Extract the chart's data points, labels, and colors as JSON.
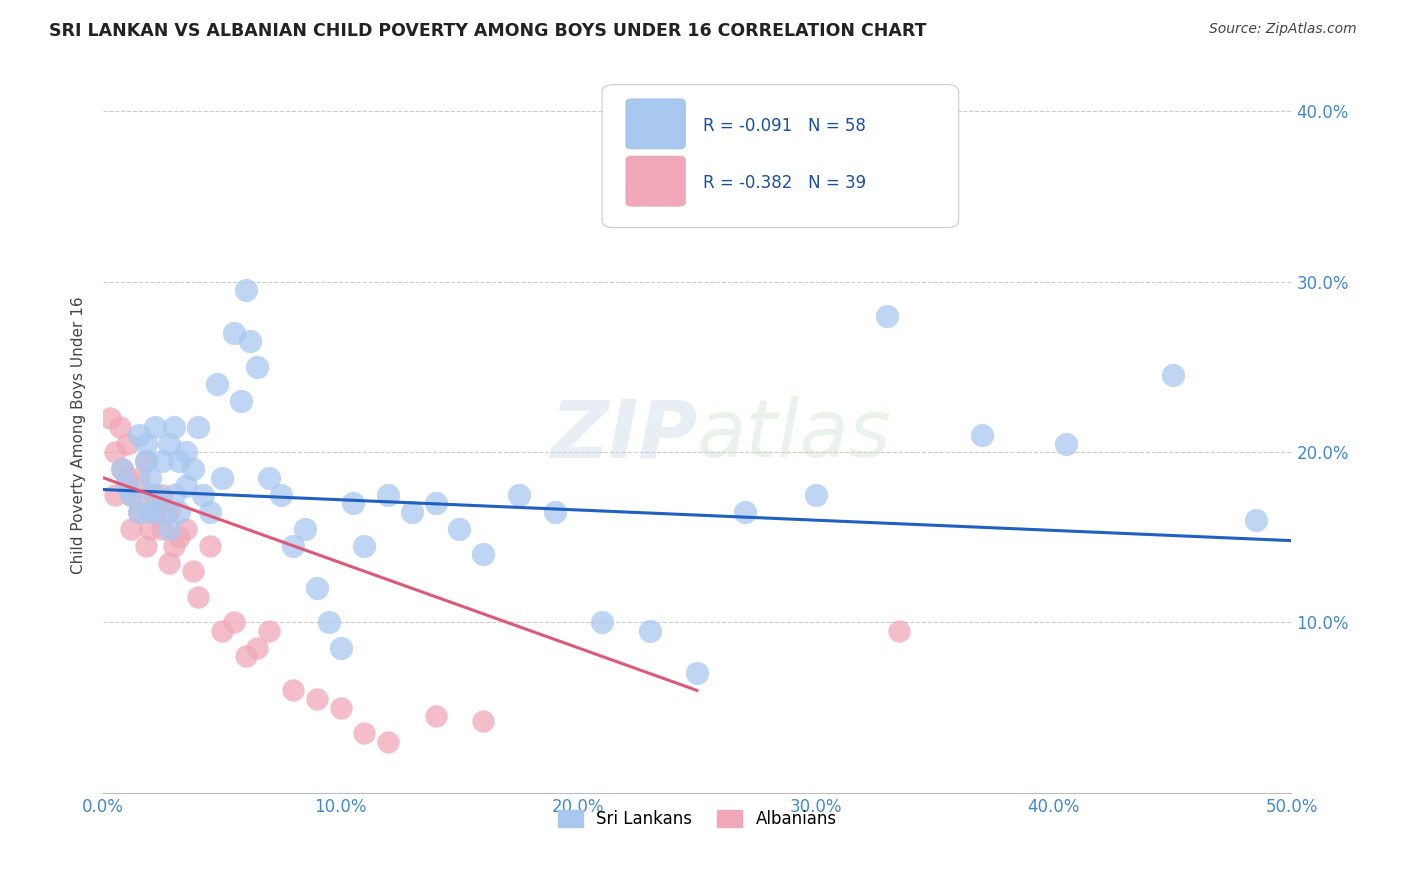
{
  "title": "SRI LANKAN VS ALBANIAN CHILD POVERTY AMONG BOYS UNDER 16 CORRELATION CHART",
  "source": "Source: ZipAtlas.com",
  "ylabel": "Child Poverty Among Boys Under 16",
  "xlim": [
    0.0,
    0.5
  ],
  "ylim": [
    0.0,
    0.42
  ],
  "xticks": [
    0.0,
    0.1,
    0.2,
    0.3,
    0.4,
    0.5
  ],
  "yticks": [
    0.1,
    0.2,
    0.3,
    0.4
  ],
  "ytick_labels": [
    "10.0%",
    "20.0%",
    "30.0%",
    "40.0%"
  ],
  "xtick_labels": [
    "0.0%",
    "10.0%",
    "20.0%",
    "30.0%",
    "40.0%",
    "50.0%"
  ],
  "sri_lanka_color": "#a8c8f0",
  "albanian_color": "#f0a8b8",
  "sri_lanka_line_color": "#2060c0",
  "albanian_line_color": "#e05878",
  "legend_r_sri": "R = -0.091",
  "legend_n_sri": "N = 58",
  "legend_r_alb": "R = -0.382",
  "legend_n_alb": "N = 39",
  "watermark_zip": "ZIP",
  "watermark_atlas": "atlas",
  "sri_lanka_x": [
    0.008,
    0.01,
    0.012,
    0.015,
    0.015,
    0.018,
    0.018,
    0.02,
    0.02,
    0.022,
    0.022,
    0.025,
    0.025,
    0.028,
    0.028,
    0.03,
    0.03,
    0.032,
    0.032,
    0.035,
    0.035,
    0.038,
    0.04,
    0.042,
    0.045,
    0.048,
    0.05,
    0.055,
    0.058,
    0.06,
    0.062,
    0.065,
    0.07,
    0.075,
    0.08,
    0.085,
    0.09,
    0.095,
    0.1,
    0.105,
    0.11,
    0.12,
    0.13,
    0.14,
    0.15,
    0.16,
    0.175,
    0.19,
    0.21,
    0.23,
    0.25,
    0.27,
    0.3,
    0.33,
    0.37,
    0.405,
    0.45,
    0.485
  ],
  "sri_lanka_y": [
    0.19,
    0.18,
    0.175,
    0.165,
    0.21,
    0.195,
    0.205,
    0.185,
    0.165,
    0.215,
    0.175,
    0.195,
    0.165,
    0.205,
    0.155,
    0.215,
    0.175,
    0.195,
    0.165,
    0.18,
    0.2,
    0.19,
    0.215,
    0.175,
    0.165,
    0.24,
    0.185,
    0.27,
    0.23,
    0.295,
    0.265,
    0.25,
    0.185,
    0.175,
    0.145,
    0.155,
    0.12,
    0.1,
    0.085,
    0.17,
    0.145,
    0.175,
    0.165,
    0.17,
    0.155,
    0.14,
    0.175,
    0.165,
    0.1,
    0.095,
    0.07,
    0.165,
    0.175,
    0.28,
    0.21,
    0.205,
    0.245,
    0.16
  ],
  "albanian_x": [
    0.003,
    0.005,
    0.005,
    0.007,
    0.008,
    0.01,
    0.01,
    0.012,
    0.012,
    0.015,
    0.015,
    0.018,
    0.018,
    0.02,
    0.02,
    0.022,
    0.025,
    0.025,
    0.028,
    0.028,
    0.03,
    0.032,
    0.035,
    0.038,
    0.04,
    0.045,
    0.05,
    0.055,
    0.06,
    0.065,
    0.07,
    0.08,
    0.09,
    0.1,
    0.11,
    0.12,
    0.14,
    0.16,
    0.335
  ],
  "albanian_y": [
    0.22,
    0.2,
    0.175,
    0.215,
    0.19,
    0.205,
    0.185,
    0.175,
    0.155,
    0.185,
    0.165,
    0.195,
    0.145,
    0.175,
    0.155,
    0.165,
    0.175,
    0.155,
    0.165,
    0.135,
    0.145,
    0.15,
    0.155,
    0.13,
    0.115,
    0.145,
    0.095,
    0.1,
    0.08,
    0.085,
    0.095,
    0.06,
    0.055,
    0.05,
    0.035,
    0.03,
    0.045,
    0.042,
    0.095
  ],
  "sri_trend_x": [
    0.0,
    0.5
  ],
  "sri_trend_y": [
    0.178,
    0.148
  ],
  "alb_trend_x": [
    0.0,
    0.25
  ],
  "alb_trend_y": [
    0.185,
    0.06
  ]
}
